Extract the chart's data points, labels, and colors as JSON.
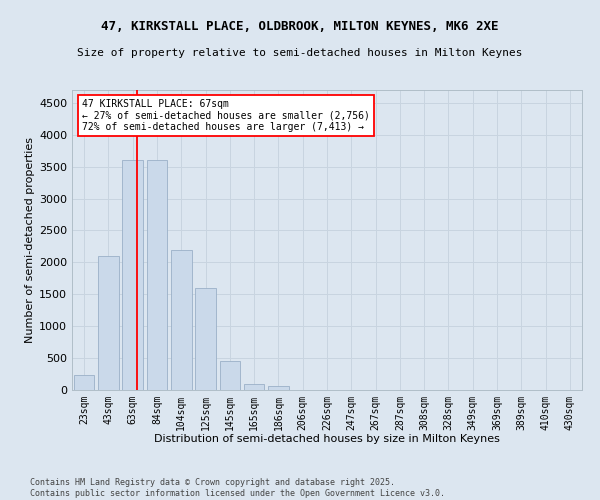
{
  "title": "47, KIRKSTALL PLACE, OLDBROOK, MILTON KEYNES, MK6 2XE",
  "subtitle": "Size of property relative to semi-detached houses in Milton Keynes",
  "xlabel": "Distribution of semi-detached houses by size in Milton Keynes",
  "ylabel": "Number of semi-detached properties",
  "categories": [
    "23sqm",
    "43sqm",
    "63sqm",
    "84sqm",
    "104sqm",
    "125sqm",
    "145sqm",
    "165sqm",
    "186sqm",
    "206sqm",
    "226sqm",
    "247sqm",
    "267sqm",
    "287sqm",
    "308sqm",
    "328sqm",
    "349sqm",
    "369sqm",
    "389sqm",
    "410sqm",
    "430sqm"
  ],
  "values": [
    230,
    2100,
    3600,
    3600,
    2200,
    1600,
    450,
    100,
    55,
    0,
    0,
    0,
    0,
    0,
    0,
    0,
    0,
    0,
    0,
    0,
    0
  ],
  "bar_color": "#cad9ea",
  "bar_edge_color": "#9ab0c8",
  "grid_color": "#c8d4e0",
  "background_color": "#dce6f0",
  "property_line_x": 2.18,
  "annotation_text_line1": "47 KIRKSTALL PLACE: 67sqm",
  "annotation_text_line2": "← 27% of semi-detached houses are smaller (2,756)",
  "annotation_text_line3": "72% of semi-detached houses are larger (7,413) →",
  "footer_line1": "Contains HM Land Registry data © Crown copyright and database right 2025.",
  "footer_line2": "Contains public sector information licensed under the Open Government Licence v3.0.",
  "ylim": [
    0,
    4700
  ],
  "yticks": [
    0,
    500,
    1000,
    1500,
    2000,
    2500,
    3000,
    3500,
    4000,
    4500
  ],
  "title_fontsize": 9,
  "subtitle_fontsize": 8,
  "tick_fontsize": 7,
  "ylabel_fontsize": 8,
  "xlabel_fontsize": 8
}
